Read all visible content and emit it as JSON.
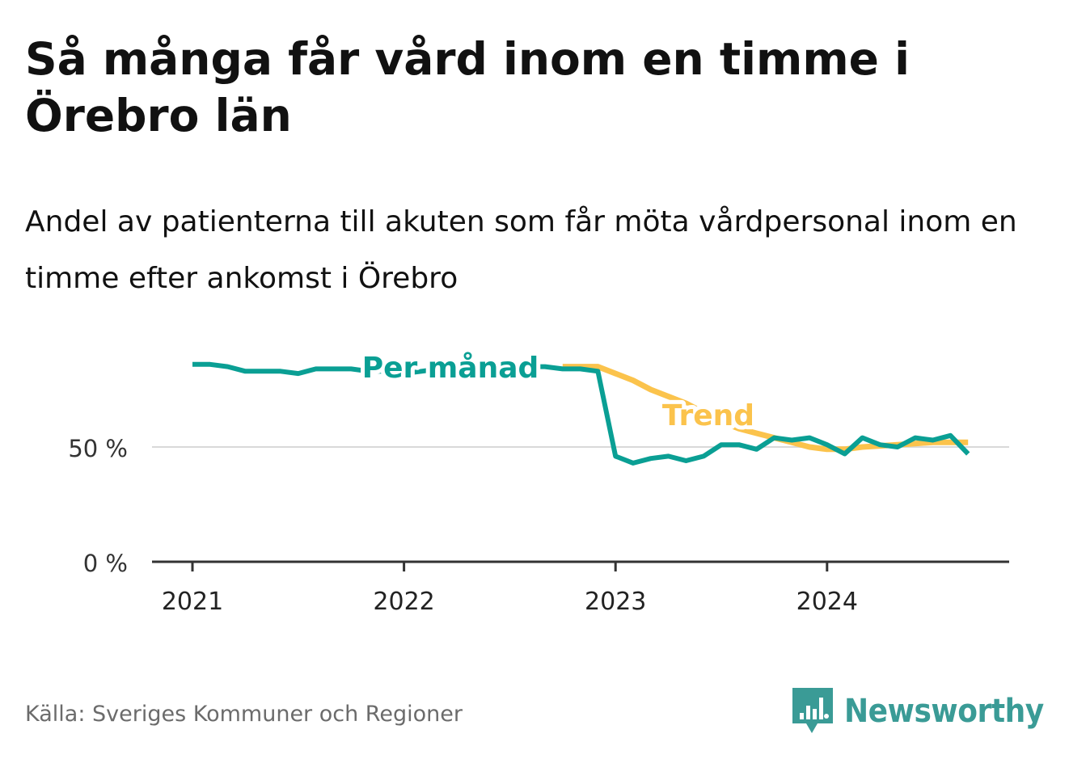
{
  "title": "Så många får vård inom en timme i Örebro län",
  "subtitle": "Andel av patienterna till akuten som får möta vårdpersonal inom en timme efter ankomst i Örebro",
  "source": "Källa: Sveriges Kommuner och Regioner",
  "brand": {
    "name": "Newsworthy",
    "icon": "newsworthy-logo-icon",
    "color": "#3a9b96"
  },
  "colors": {
    "monthly": "#0a9f94",
    "trend": "#fbc34c",
    "grid": "#d9d9d9",
    "axis": "#333333",
    "text": "#111111",
    "muted": "#6b6b6b"
  },
  "chart_data": {
    "type": "line",
    "title": "Så många får vård inom en timme i Örebro län",
    "subtitle": "Andel av patienterna till akuten som får möta vårdpersonal inom en timme efter ankomst i Örebro",
    "xlabel": "",
    "ylabel": "",
    "x_ticks": [
      "2021",
      "2022",
      "2023",
      "2024"
    ],
    "y_ticks": [
      {
        "value": 0,
        "label": "0 %"
      },
      {
        "value": 50,
        "label": "50 %"
      }
    ],
    "ylim": [
      0,
      90
    ],
    "xlim": [
      "2020-12",
      "2024-12"
    ],
    "grid": "horizontal",
    "legend": "inline labels",
    "series": [
      {
        "name": "Per månad",
        "color": "#0a9f94",
        "x": [
          "2021-01",
          "2021-02",
          "2021-03",
          "2021-04",
          "2021-05",
          "2021-06",
          "2021-07",
          "2021-08",
          "2021-09",
          "2021-10",
          "2021-11",
          "2021-12",
          "2022-01",
          "2022-02",
          "2022-03",
          "2022-04",
          "2022-05",
          "2022-06",
          "2022-07",
          "2022-08",
          "2022-09",
          "2022-10",
          "2022-11",
          "2022-12",
          "2023-01",
          "2023-02",
          "2023-03",
          "2023-04",
          "2023-05",
          "2023-06",
          "2023-07",
          "2023-08",
          "2023-09",
          "2023-10",
          "2023-11",
          "2023-12",
          "2024-01",
          "2024-02",
          "2024-03",
          "2024-04",
          "2024-05",
          "2024-06",
          "2024-07",
          "2024-08",
          "2024-09"
        ],
        "values": [
          86,
          86,
          85,
          83,
          83,
          83,
          82,
          84,
          84,
          84,
          83,
          83,
          82,
          83,
          84,
          85,
          86,
          86,
          85,
          85,
          85,
          84,
          84,
          83,
          46,
          43,
          45,
          46,
          44,
          46,
          51,
          51,
          49,
          54,
          53,
          54,
          51,
          47,
          54,
          51,
          50,
          54,
          53,
          55,
          47
        ]
      },
      {
        "name": "Trend",
        "color": "#fbc34c",
        "x": [
          "2022-10",
          "2022-11",
          "2022-12",
          "2023-01",
          "2023-02",
          "2023-03",
          "2023-04",
          "2023-05",
          "2023-06",
          "2023-07",
          "2023-08",
          "2023-09",
          "2023-10",
          "2023-11",
          "2023-12",
          "2024-01",
          "2024-02",
          "2024-03",
          "2024-04",
          "2024-05",
          "2024-06",
          "2024-07",
          "2024-08",
          "2024-09"
        ],
        "values": [
          85,
          85,
          85,
          82,
          79,
          75,
          72,
          69,
          65,
          61,
          58,
          56,
          54,
          52,
          50,
          49,
          49,
          50,
          50.5,
          51,
          51.5,
          52,
          52,
          52
        ]
      }
    ]
  }
}
